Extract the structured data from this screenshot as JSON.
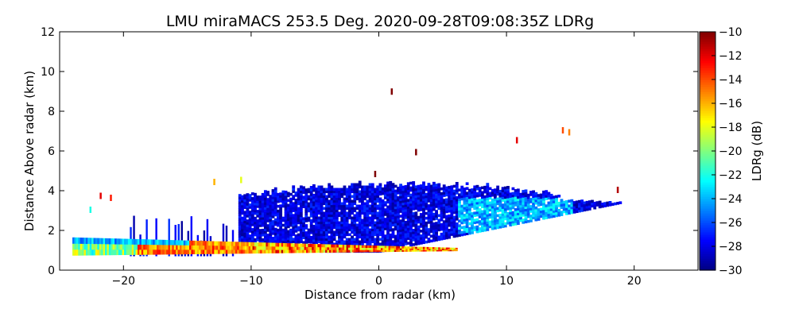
{
  "chart_data": {
    "type": "heatmap",
    "title": "LMU miraMACS 253.5 Deg. 2020-09-28T09:08:35Z  LDRg",
    "xlabel": "Distance from radar (km)",
    "ylabel": "Distance Above radar  (km)",
    "xlim": [
      -25,
      25
    ],
    "ylim": [
      0,
      12
    ],
    "x_ticks": [
      -20,
      -10,
      0,
      10,
      20
    ],
    "y_ticks": [
      0,
      2,
      4,
      6,
      8,
      10,
      12
    ],
    "colorbar": {
      "label": "LDRg (dB)",
      "range": [
        -30,
        -10
      ],
      "ticks": [
        -30,
        -28,
        -26,
        -24,
        -22,
        -20,
        -18,
        -16,
        -14,
        -12,
        -10
      ],
      "colormap": "jet"
    },
    "grid": false,
    "scan": {
      "elevation_line": {
        "x_start": -24,
        "y_start": 1.2,
        "x_end": 6,
        "y_end": 1.05,
        "ldr": -15
      },
      "main_echo_region": {
        "x_range": [
          -11,
          19.5
        ],
        "y_top": 4.3,
        "y_bottom": 0.9,
        "ldr_mean": -28
      },
      "brighter_patch": {
        "x_range": [
          6,
          15
        ],
        "y_range": [
          1.8,
          3.6
        ],
        "ldr_mean": -24
      },
      "isolated_echoes": [
        {
          "x": 1,
          "y": 8.95,
          "ldr": -10
        },
        {
          "x": 2.9,
          "y": 5.9,
          "ldr": -10
        },
        {
          "x": 10.8,
          "y": 6.5,
          "ldr": -12
        },
        {
          "x": 14.4,
          "y": 7.0,
          "ldr": -14
        },
        {
          "x": 14.9,
          "y": 6.9,
          "ldr": -15
        },
        {
          "x": -21.8,
          "y": 3.7,
          "ldr": -12
        },
        {
          "x": -21.0,
          "y": 3.6,
          "ldr": -13
        },
        {
          "x": -22.6,
          "y": 3.0,
          "ldr": -22
        },
        {
          "x": -12.9,
          "y": 4.4,
          "ldr": -16
        },
        {
          "x": -10.8,
          "y": 4.5,
          "ldr": -18
        },
        {
          "x": -0.3,
          "y": 4.8,
          "ldr": -10
        },
        {
          "x": 18.7,
          "y": 4.0,
          "ldr": -11
        }
      ]
    }
  }
}
